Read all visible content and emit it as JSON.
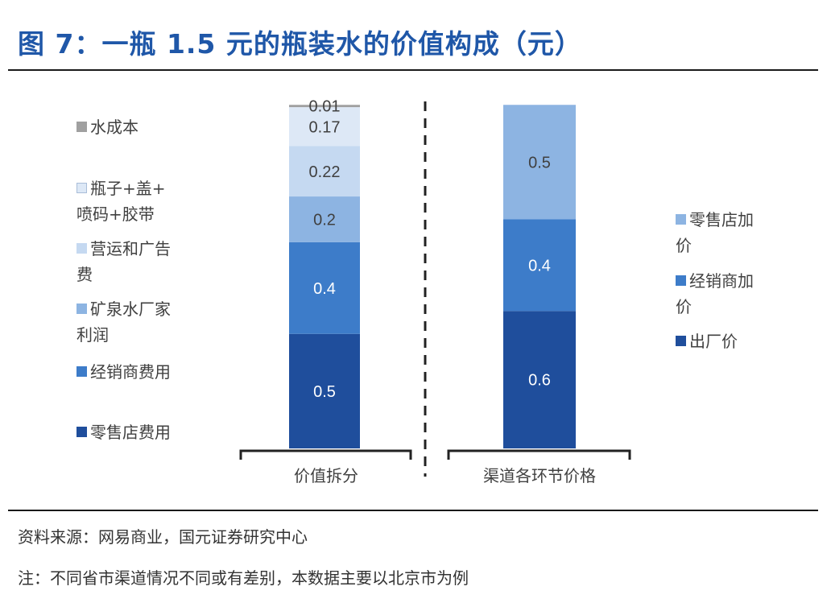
{
  "title": "图 7：一瓶 1.5 元的瓶装水的价值构成（元）",
  "source": "资料来源：网易商业，国元证券研究中心",
  "note": "注：不同省市渠道情况不同或有差别，本数据主要以北京市为例",
  "chart_data": [
    {
      "type": "bar",
      "stacked": true,
      "categories": [
        "价值拆分"
      ],
      "series": [
        {
          "name": "零售店费用",
          "values": [
            0.5
          ],
          "color": "#1f4e9c"
        },
        {
          "name": "经销商费用",
          "values": [
            0.4
          ],
          "color": "#3d7cc9"
        },
        {
          "name": "矿泉水厂家利润",
          "values": [
            0.2
          ],
          "color": "#8db4e2"
        },
        {
          "name": "营运和广告费",
          "values": [
            0.22
          ],
          "color": "#c5d9f1"
        },
        {
          "name": "瓶子+盖+喷码+胶带",
          "values": [
            0.17
          ],
          "color": "#dde8f6"
        },
        {
          "name": "水成本",
          "values": [
            0.01
          ],
          "color": "#a0a0a0"
        }
      ],
      "data_labels": [
        "0.5",
        "0.4",
        "0.2",
        "0.22",
        "0.17",
        "0.01"
      ],
      "legend_position": "left"
    },
    {
      "type": "bar",
      "stacked": true,
      "categories": [
        "渠道各环节价格"
      ],
      "series": [
        {
          "name": "出厂价",
          "values": [
            0.6
          ],
          "color": "#1f4e9c"
        },
        {
          "name": "经销商加价",
          "values": [
            0.4
          ],
          "color": "#3d7cc9"
        },
        {
          "name": "零售店加价",
          "values": [
            0.5
          ],
          "color": "#8db4e2"
        }
      ],
      "data_labels": [
        "0.6",
        "0.4",
        "0.5"
      ],
      "legend_position": "right"
    }
  ],
  "legend_left": [
    {
      "label": "水成本",
      "color": "#a0a0a0"
    },
    {
      "label": "瓶子+盖+\n喷码+胶带",
      "color": "#dde8f6"
    },
    {
      "label": "营运和广告\n费",
      "color": "#c5d9f1"
    },
    {
      "label": "矿泉水厂家\n利润",
      "color": "#8db4e2"
    },
    {
      "label": "经销商费用",
      "color": "#3d7cc9"
    },
    {
      "label": "零售店费用",
      "color": "#1f4e9c"
    }
  ],
  "legend_right": [
    {
      "label": "零售店加\n价",
      "color": "#8db4e2"
    },
    {
      "label": "经销商加\n价",
      "color": "#3d7cc9"
    },
    {
      "label": "出厂价",
      "color": "#1f4e9c"
    }
  ]
}
